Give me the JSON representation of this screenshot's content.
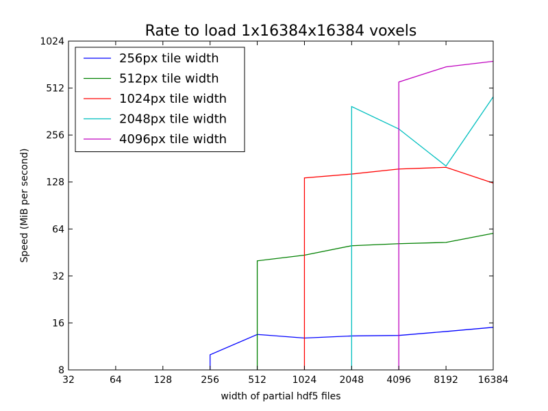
{
  "chart_data": {
    "type": "line",
    "title": "Rate to load 1x16384x16384 voxels",
    "xlabel": "width of partial hdf5 files",
    "ylabel": "Speed (MiB per second)",
    "x_scale": "log2",
    "y_scale": "log2",
    "xlim": [
      32,
      16384
    ],
    "ylim": [
      8,
      1024
    ],
    "x_ticks": [
      32,
      64,
      128,
      256,
      512,
      1024,
      2048,
      4096,
      8192,
      16384
    ],
    "y_ticks": [
      8,
      16,
      32,
      64,
      128,
      256,
      512,
      1024
    ],
    "grid": false,
    "legend_position": "upper-left",
    "series": [
      {
        "name": "256px tile width",
        "color": "#0000ff",
        "points": [
          [
            256,
            8
          ],
          [
            256,
            10
          ],
          [
            512,
            13.5
          ],
          [
            1024,
            12.8
          ],
          [
            2048,
            13.2
          ],
          [
            4096,
            13.3
          ],
          [
            8192,
            14.1
          ],
          [
            16384,
            15
          ]
        ]
      },
      {
        "name": "512px tile width",
        "color": "#008000",
        "points": [
          [
            512,
            8
          ],
          [
            512,
            40
          ],
          [
            1024,
            43.5
          ],
          [
            2048,
            50
          ],
          [
            4096,
            51.5
          ],
          [
            8192,
            52.5
          ],
          [
            16384,
            60
          ]
        ]
      },
      {
        "name": "1024px tile width",
        "color": "#ff0000",
        "points": [
          [
            1024,
            8
          ],
          [
            1024,
            136
          ],
          [
            2048,
            144
          ],
          [
            4096,
            155
          ],
          [
            8192,
            159
          ],
          [
            16384,
            126
          ]
        ]
      },
      {
        "name": "2048px tile width",
        "color": "#00bfbf",
        "points": [
          [
            2048,
            8
          ],
          [
            2048,
            390
          ],
          [
            4096,
            280
          ],
          [
            8192,
            162
          ],
          [
            16384,
            450
          ]
        ]
      },
      {
        "name": "4096px tile width",
        "color": "#bf00bf",
        "points": [
          [
            4096,
            8
          ],
          [
            4096,
            560
          ],
          [
            8192,
            700
          ],
          [
            16384,
            760
          ]
        ]
      }
    ]
  }
}
